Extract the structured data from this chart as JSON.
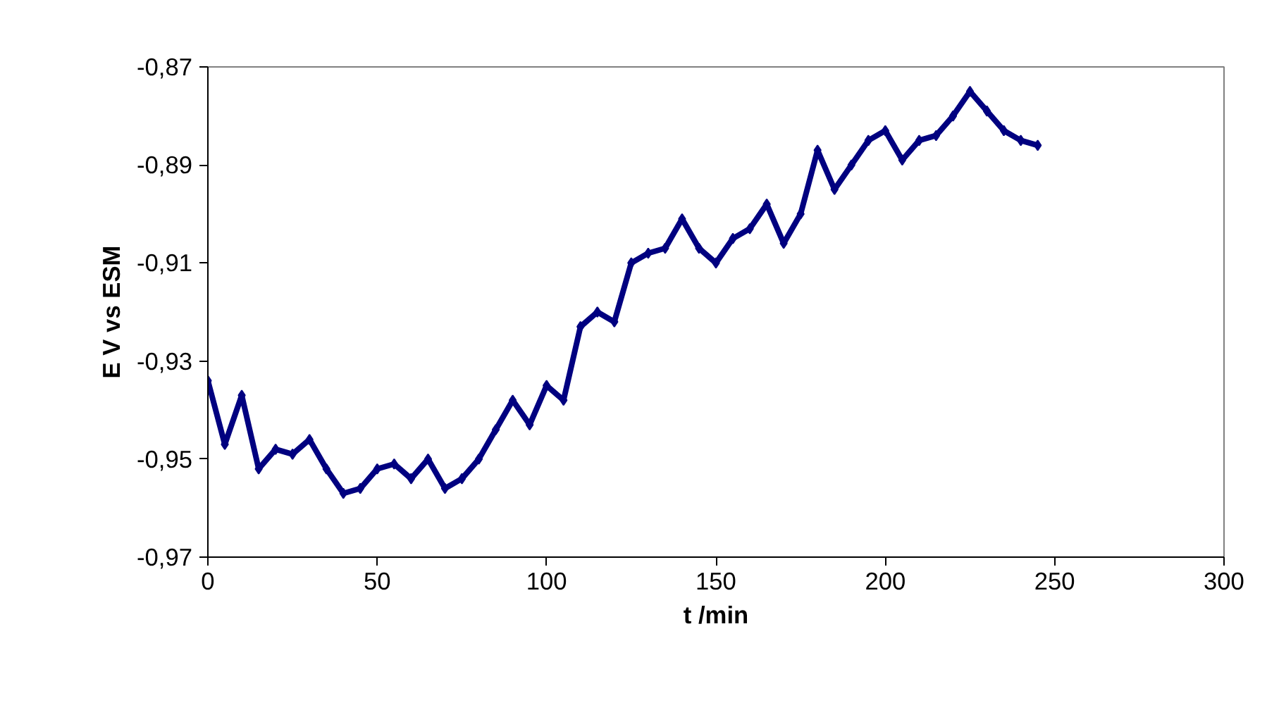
{
  "chart_data": {
    "type": "line",
    "xlabel": "t /min",
    "ylabel": "E V vs ESM",
    "x": [
      0,
      5,
      10,
      15,
      20,
      25,
      30,
      35,
      40,
      45,
      50,
      55,
      60,
      65,
      70,
      75,
      80,
      85,
      90,
      95,
      100,
      105,
      110,
      115,
      120,
      125,
      130,
      135,
      140,
      145,
      150,
      155,
      160,
      165,
      170,
      175,
      180,
      185,
      190,
      195,
      200,
      205,
      210,
      215,
      220,
      225,
      230,
      235,
      240,
      245
    ],
    "series": [
      {
        "color": "#000080",
        "values": [
          -0.934,
          -0.947,
          -0.937,
          -0.952,
          -0.948,
          -0.949,
          -0.946,
          -0.952,
          -0.957,
          -0.956,
          -0.952,
          -0.951,
          -0.954,
          -0.95,
          -0.956,
          -0.954,
          -0.95,
          -0.944,
          -0.938,
          -0.943,
          -0.935,
          -0.938,
          -0.923,
          -0.92,
          -0.922,
          -0.91,
          -0.908,
          -0.907,
          -0.901,
          -0.907,
          -0.91,
          -0.905,
          -0.903,
          -0.898,
          -0.906,
          -0.9,
          -0.887,
          -0.895,
          -0.89,
          -0.885,
          -0.883,
          -0.889,
          -0.885,
          -0.884,
          -0.88,
          -0.875,
          -0.879,
          -0.883,
          -0.885,
          -0.886
        ]
      }
    ],
    "xlim": [
      0,
      300
    ],
    "xticks": [
      0,
      50,
      100,
      150,
      200,
      250,
      300
    ],
    "ylim": [
      -0.97,
      -0.87
    ],
    "yticks": [
      {
        "value": -0.97,
        "label": "-0,97"
      },
      {
        "value": -0.95,
        "label": "-0,95"
      },
      {
        "value": -0.93,
        "label": "-0,93"
      },
      {
        "value": -0.91,
        "label": "-0,91"
      },
      {
        "value": -0.89,
        "label": "-0,89"
      },
      {
        "value": -0.87,
        "label": "-0,87"
      }
    ],
    "grid": false,
    "marker": "diamond",
    "line_style": "solid"
  }
}
